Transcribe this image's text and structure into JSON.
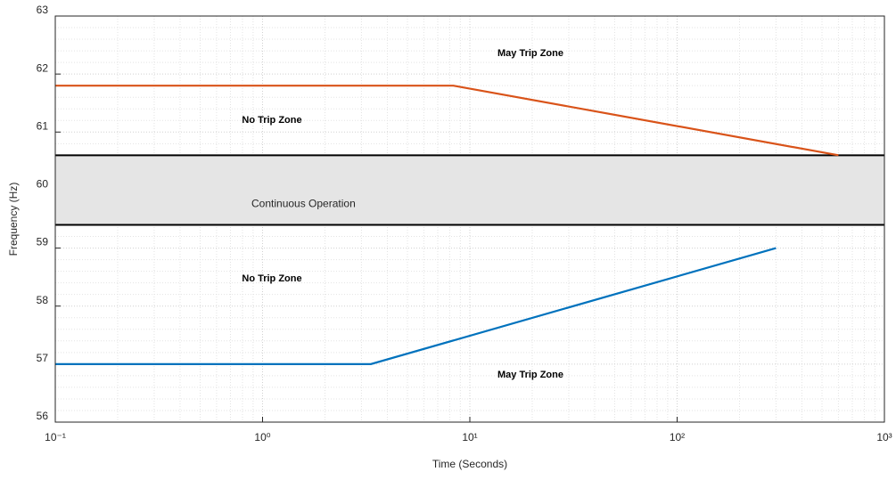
{
  "chart_data": {
    "type": "line",
    "xlabel": "Time (Seconds)",
    "ylabel": "Frequency (Hz)",
    "xscale": "log",
    "grid": true,
    "xlim": [
      0.1,
      1000
    ],
    "xticks": [
      {
        "value": 0.1,
        "label": "10⁻¹"
      },
      {
        "value": 1,
        "label": "10⁰"
      },
      {
        "value": 10,
        "label": "10¹"
      },
      {
        "value": 100,
        "label": "10²"
      },
      {
        "value": 1000,
        "label": "10³"
      }
    ],
    "ylim": [
      56,
      63
    ],
    "yticks": [
      56,
      57,
      58,
      59,
      60,
      61,
      62,
      63
    ],
    "series": [
      {
        "color": "#d95319",
        "x": [
          0.1,
          8.33,
          600
        ],
        "values": [
          61.8,
          61.8,
          60.6
        ]
      },
      {
        "color": "#0072bd",
        "x": [
          0.1,
          3.33,
          300
        ],
        "values": [
          57,
          57,
          59
        ]
      }
    ],
    "bands": [
      {
        "label": "Continuous Operation",
        "range": [
          59.4,
          60.6
        ],
        "color": "#e5e5e5"
      }
    ],
    "annotations": [
      "May Trip Zone",
      "No Trip Zone",
      "No Trip Zone",
      "May Trip Zone"
    ]
  }
}
